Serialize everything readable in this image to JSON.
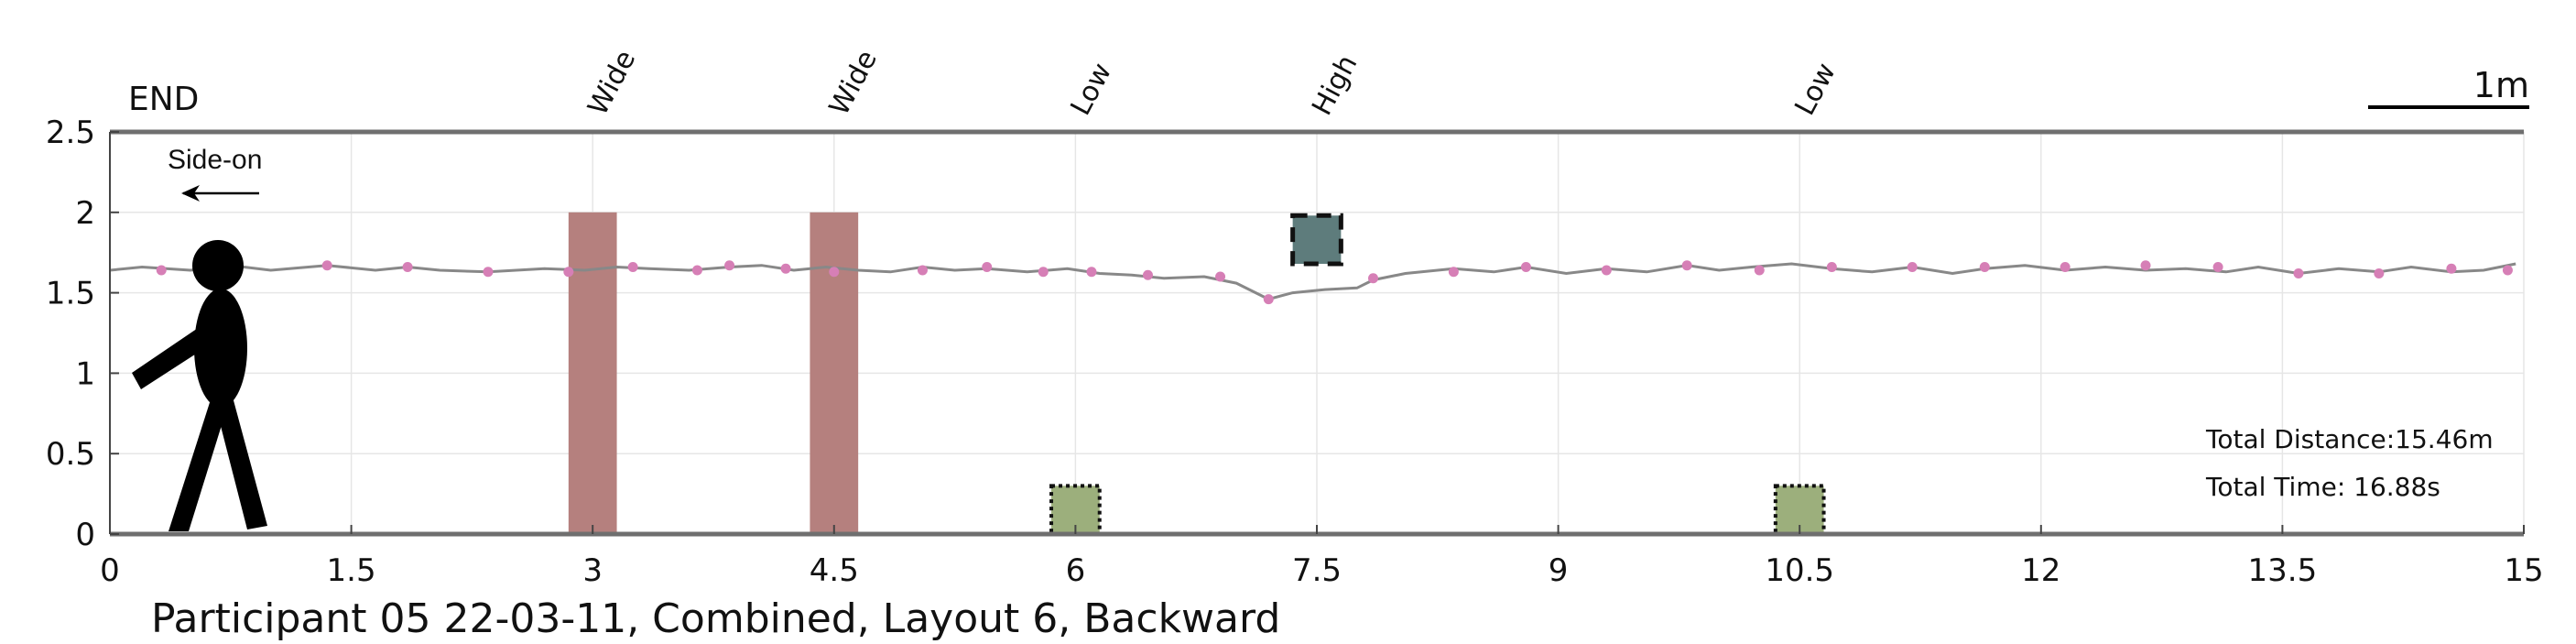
{
  "chart_data": {
    "type": "line",
    "xlim": [
      0,
      15
    ],
    "ylim": [
      0,
      2.5
    ],
    "xticks": [
      0,
      1.5,
      3,
      4.5,
      6,
      7.5,
      9,
      10.5,
      12,
      13.5,
      15
    ],
    "yticks": [
      0,
      0.5,
      1,
      1.5,
      2,
      2.5
    ],
    "xtick_labels": [
      "0",
      "1.5",
      "3",
      "4.5",
      "6",
      "7.5",
      "9",
      "10.5",
      "12",
      "13.5",
      "15"
    ],
    "ytick_labels": [
      "0",
      "0.5",
      "1",
      "1.5",
      "2",
      "2.5"
    ],
    "grid": true,
    "end_label": "END",
    "direction_label": "Side-on",
    "scale_label": "1m",
    "stats": {
      "distance": "Total Distance:15.46m",
      "time": "Total Time: 16.88s"
    },
    "caption": "Participant 05 22-03-11, Combined, Layout 6, Backward",
    "obstacles": [
      {
        "label": "Wide",
        "kind": "wide",
        "x0": 2.85,
        "x1": 3.15,
        "y0": 0,
        "y1": 2.0,
        "color": "#b5807e"
      },
      {
        "label": "Wide",
        "kind": "wide",
        "x0": 4.35,
        "x1": 4.65,
        "y0": 0,
        "y1": 2.0,
        "color": "#b5807e"
      },
      {
        "label": "Low",
        "kind": "low",
        "x0": 5.85,
        "x1": 6.15,
        "y0": 0,
        "y1": 0.3,
        "color": "#9caf7c"
      },
      {
        "label": "High",
        "kind": "high",
        "x0": 7.35,
        "x1": 7.65,
        "y0": 1.68,
        "y1": 1.98,
        "color": "#5e7c7c"
      },
      {
        "label": "Low",
        "kind": "low",
        "x0": 10.35,
        "x1": 10.65,
        "y0": 0,
        "y1": 0.3,
        "color": "#9caf7c"
      }
    ],
    "series": [
      {
        "line_color": "#888888",
        "marker_color": "#d67fb6",
        "x": [
          0.0,
          0.2,
          0.5,
          0.75,
          1.0,
          1.35,
          1.65,
          1.85,
          2.05,
          2.35,
          2.7,
          2.95,
          3.15,
          3.35,
          3.6,
          3.85,
          4.05,
          4.25,
          4.45,
          4.65,
          4.85,
          5.05,
          5.25,
          5.45,
          5.7,
          5.95,
          6.15,
          6.35,
          6.55,
          6.8,
          7.0,
          7.2,
          7.35,
          7.55,
          7.75,
          7.85,
          8.05,
          8.35,
          8.6,
          8.8,
          9.05,
          9.3,
          9.55,
          9.8,
          10.0,
          10.2,
          10.45,
          10.7,
          10.95,
          11.2,
          11.45,
          11.65,
          11.9,
          12.15,
          12.4,
          12.65,
          12.9,
          13.15,
          13.35,
          13.6,
          13.85,
          14.1,
          14.3,
          14.55,
          14.75,
          14.95
        ],
        "y": [
          1.64,
          1.66,
          1.64,
          1.67,
          1.64,
          1.67,
          1.64,
          1.66,
          1.64,
          1.63,
          1.65,
          1.64,
          1.66,
          1.65,
          1.64,
          1.66,
          1.67,
          1.64,
          1.66,
          1.64,
          1.63,
          1.66,
          1.64,
          1.65,
          1.63,
          1.65,
          1.62,
          1.61,
          1.59,
          1.6,
          1.56,
          1.46,
          1.5,
          1.52,
          1.53,
          1.58,
          1.62,
          1.65,
          1.63,
          1.66,
          1.62,
          1.65,
          1.63,
          1.67,
          1.64,
          1.66,
          1.68,
          1.65,
          1.63,
          1.66,
          1.62,
          1.65,
          1.67,
          1.64,
          1.66,
          1.64,
          1.65,
          1.63,
          1.66,
          1.62,
          1.65,
          1.63,
          1.66,
          1.63,
          1.64,
          1.68
        ],
        "markers_x": [
          0.32,
          1.35,
          1.85,
          2.35,
          2.85,
          3.25,
          3.65,
          3.85,
          4.2,
          4.5,
          5.05,
          5.45,
          5.8,
          6.1,
          6.45,
          6.9,
          7.2,
          7.85,
          8.35,
          8.8,
          9.3,
          9.8,
          10.25,
          10.7,
          11.2,
          11.65,
          12.15,
          12.65,
          13.1,
          13.6,
          14.1,
          14.55,
          14.9
        ],
        "markers_y": [
          1.64,
          1.67,
          1.66,
          1.63,
          1.63,
          1.66,
          1.64,
          1.67,
          1.65,
          1.63,
          1.64,
          1.66,
          1.63,
          1.63,
          1.61,
          1.6,
          1.46,
          1.59,
          1.63,
          1.66,
          1.64,
          1.67,
          1.64,
          1.66,
          1.66,
          1.66,
          1.66,
          1.67,
          1.66,
          1.62,
          1.62,
          1.65,
          1.64
        ]
      }
    ]
  }
}
